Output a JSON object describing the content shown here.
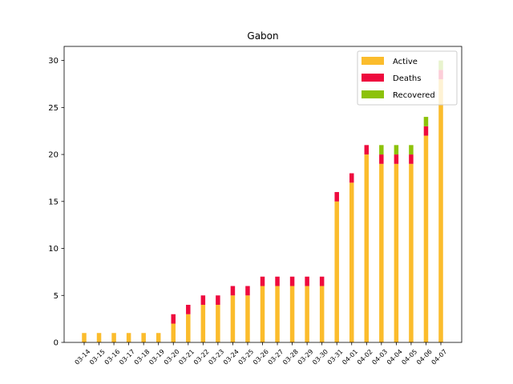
{
  "chart_data": {
    "type": "bar",
    "stacked": true,
    "title": "Gabon",
    "xlabel": "",
    "ylabel": "",
    "ylim": [
      0,
      31.5
    ],
    "yticks": [
      0,
      5,
      10,
      15,
      20,
      25,
      30
    ],
    "grid": false,
    "legend_position": "top-right",
    "categories": [
      "03-14",
      "03-15",
      "03-16",
      "03-17",
      "03-18",
      "03-19",
      "03-20",
      "03-21",
      "03-22",
      "03-23",
      "03-24",
      "03-25",
      "03-26",
      "03-27",
      "03-28",
      "03-29",
      "03-30",
      "03-31",
      "04-01",
      "04-02",
      "04-03",
      "04-04",
      "04-05",
      "04-06",
      "04-07"
    ],
    "series": [
      {
        "name": "Active",
        "color": "#fbbc2c",
        "values": [
          1,
          1,
          1,
          1,
          1,
          1,
          2,
          3,
          4,
          4,
          5,
          5,
          6,
          6,
          6,
          6,
          6,
          15,
          17,
          20,
          19,
          19,
          19,
          22,
          28
        ]
      },
      {
        "name": "Deaths",
        "color": "#ee0a3e",
        "values": [
          0,
          0,
          0,
          0,
          0,
          0,
          1,
          1,
          1,
          1,
          1,
          1,
          1,
          1,
          1,
          1,
          1,
          1,
          1,
          1,
          1,
          1,
          1,
          1,
          1
        ]
      },
      {
        "name": "Recovered",
        "color": "#8cc20a",
        "values": [
          0,
          0,
          0,
          0,
          0,
          0,
          0,
          0,
          0,
          0,
          0,
          0,
          0,
          0,
          0,
          0,
          0,
          0,
          0,
          0,
          1,
          1,
          1,
          1,
          1
        ]
      }
    ]
  }
}
